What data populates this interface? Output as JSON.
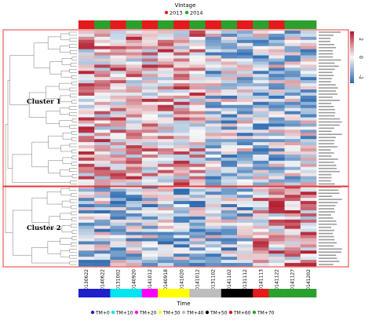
{
  "chart_data": {
    "type": "heatmap",
    "title": "",
    "columns": [
      "20130622",
      "20140622",
      "20131002",
      "20140920",
      "20141012",
      "20140918",
      "20141020",
      "20141012",
      "20131102",
      "20141102",
      "20131112",
      "20141113",
      "20141122",
      "20141127",
      "20141202"
    ],
    "vintage": {
      "title": "Vintage",
      "legend": [
        {
          "label": "2013",
          "color": "#e41a1c"
        },
        {
          "label": "2014",
          "color": "#2ca02c"
        }
      ],
      "per_column": [
        "2013",
        "2014",
        "2013",
        "2014",
        "2013",
        "2014",
        "2013",
        "2014",
        "2013",
        "2014",
        "2013",
        "2014",
        "2013",
        "2014",
        "2014"
      ]
    },
    "time": {
      "title": "Time",
      "legend": [
        {
          "label": "TM+0",
          "color": "#1f1fcc"
        },
        {
          "label": "TM+10",
          "color": "#00e5ee"
        },
        {
          "label": "TM+20",
          "color": "#ff00ff"
        },
        {
          "label": "TM+30",
          "color": "#ffff00"
        },
        {
          "label": "TM+40",
          "color": "#bdbdbd"
        },
        {
          "label": "TM+50",
          "color": "#000000"
        },
        {
          "label": "TM+60",
          "color": "#e41a1c"
        },
        {
          "label": "TM+70",
          "color": "#2ca02c"
        }
      ],
      "per_column": [
        "TM+0",
        "TM+0",
        "TM+10",
        "TM+10",
        "TM+20",
        "TM+30",
        "TM+30",
        "TM+40",
        "TM+40",
        "TM+50",
        "TM+50",
        "TM+60",
        "TM+70",
        "TM+70",
        "TM+70"
      ]
    },
    "colorbar": {
      "ticks": [
        2,
        0,
        -2
      ],
      "low_color": "#2b6ab0",
      "mid_color": "#f7f7f7",
      "high_color": "#b2182b"
    },
    "clusters": [
      {
        "label": "Cluster 1",
        "rows": 50
      },
      {
        "label": "Cluster 2",
        "rows": 26
      }
    ]
  }
}
